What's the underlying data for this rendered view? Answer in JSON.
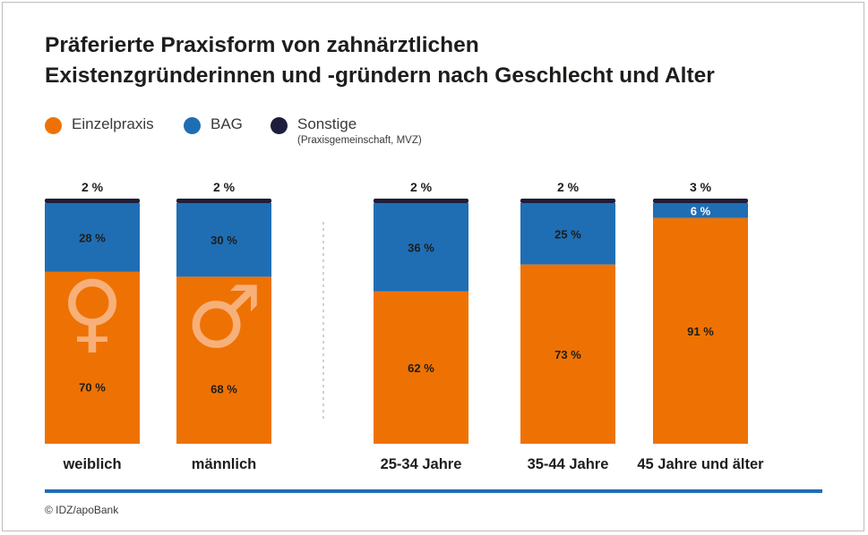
{
  "title": {
    "line1": "Präferierte Praxisform von zahnärztlichen",
    "line2": "Existenzgründerinnen und -gründern nach Geschlecht und Alter"
  },
  "legend": [
    {
      "label": "Einzelpraxis",
      "color": "#ee7203"
    },
    {
      "label": "BAG",
      "color": "#1f6eb4"
    },
    {
      "label": "Sonstige",
      "sublabel": "(Praxisgemeinschaft, MVZ)",
      "color": "#1e1e3c"
    }
  ],
  "source": "© IDZ/apoBank",
  "chart_data": {
    "type": "bar",
    "stacked": true,
    "orientation": "vertical",
    "unit": "%",
    "categories": [
      "weiblich",
      "männlich",
      "25-34 Jahre",
      "35-44 Jahre",
      "45 Jahre und älter"
    ],
    "groups": [
      {
        "categories": [
          "weiblich",
          "männlich"
        ],
        "note": "Geschlecht"
      },
      {
        "categories": [
          "25-34 Jahre",
          "35-44 Jahre",
          "45 Jahre und älter"
        ],
        "note": "Alter"
      }
    ],
    "series": [
      {
        "name": "Einzelpraxis",
        "color": "#ee7203",
        "values": [
          70,
          68,
          62,
          73,
          91
        ]
      },
      {
        "name": "BAG",
        "color": "#1f6eb4",
        "values": [
          28,
          30,
          36,
          25,
          6
        ]
      },
      {
        "name": "Sonstige",
        "color": "#1e1e3c",
        "values": [
          2,
          2,
          2,
          2,
          3
        ]
      }
    ],
    "data_labels": [
      [
        "70 %",
        "68 %",
        "62 %",
        "73 %",
        "91 %"
      ],
      [
        "28 %",
        "30 %",
        "36 %",
        "25 %",
        "6 %"
      ],
      [
        "2 %",
        "2 %",
        "2 %",
        "2 %",
        "3 %"
      ]
    ],
    "symbols": {
      "weiblich": "♀",
      "männlich": "♂"
    },
    "ylim": [
      0,
      100
    ],
    "grid": false,
    "legend_position": "top-left"
  }
}
